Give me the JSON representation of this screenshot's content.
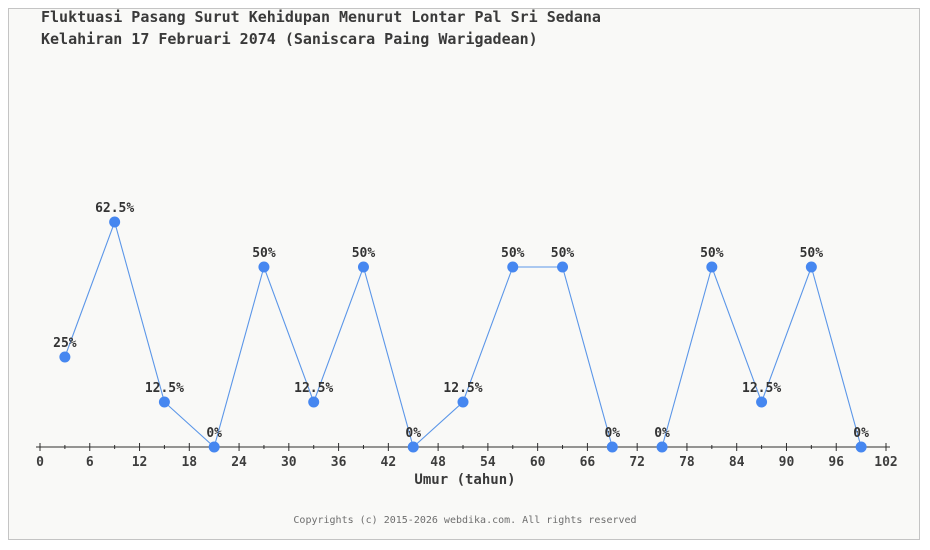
{
  "page": {
    "title_line1": "Fluktuasi Pasang Surut Kehidupan Menurut Lontar Pal Sri Sedana",
    "title_line2": "Kelahiran 17 Februari 2074 (Saniscara Paing Warigadean)",
    "footer": "Copyrights (c) 2015-2026 webdika.com. All rights reserved"
  },
  "colors": {
    "accent_marker_blue": "#4687f0",
    "accent_line_blue": "#5b96e8",
    "text_dark": "#3a3a3a",
    "text_label": "#333333",
    "axis_color": "#2e2e2e",
    "footer_gray": "#6e6e6e",
    "panel_background": "#f9f9f7",
    "panel_border": "#c4c4c4"
  },
  "chart_data": {
    "type": "line",
    "title": "Fluktuasi Pasang Surut Kehidupan Menurut Lontar Pal Sri Sedana Kelahiran 17 Februari 2074 (Saniscara Paing Warigadean)",
    "xlabel": "Umur (tahun)",
    "ylabel": "",
    "x": [
      3,
      9,
      15,
      21,
      27,
      33,
      39,
      45,
      51,
      57,
      63,
      69,
      75,
      81,
      87,
      93,
      99
    ],
    "values": [
      25,
      62.5,
      12.5,
      0,
      50,
      12.5,
      50,
      0,
      12.5,
      50,
      50,
      0,
      0,
      50,
      12.5,
      50,
      0
    ],
    "point_labels": [
      "25%",
      "62.5%",
      "12.5%",
      "0%",
      "50%",
      "12.5%",
      "50%",
      "0%",
      "12.5%",
      "50%",
      "50%",
      "0%",
      "0%",
      "50%",
      "12.5%",
      "50%",
      "0%"
    ],
    "xlim": [
      0,
      102
    ],
    "ylim": [
      0,
      70
    ],
    "xtick_step_major": 6,
    "xtick_step_minor": 3,
    "xtick_labels": [
      "0",
      "6",
      "12",
      "18",
      "24",
      "30",
      "36",
      "42",
      "48",
      "54",
      "60",
      "66",
      "72",
      "78",
      "84",
      "90",
      "96",
      "102"
    ],
    "grid": false,
    "legend": "none",
    "line_color": "#5b96e8",
    "marker_color": "#4687f0",
    "label_color": "#333333",
    "axis_color": "#2e2e2e"
  }
}
